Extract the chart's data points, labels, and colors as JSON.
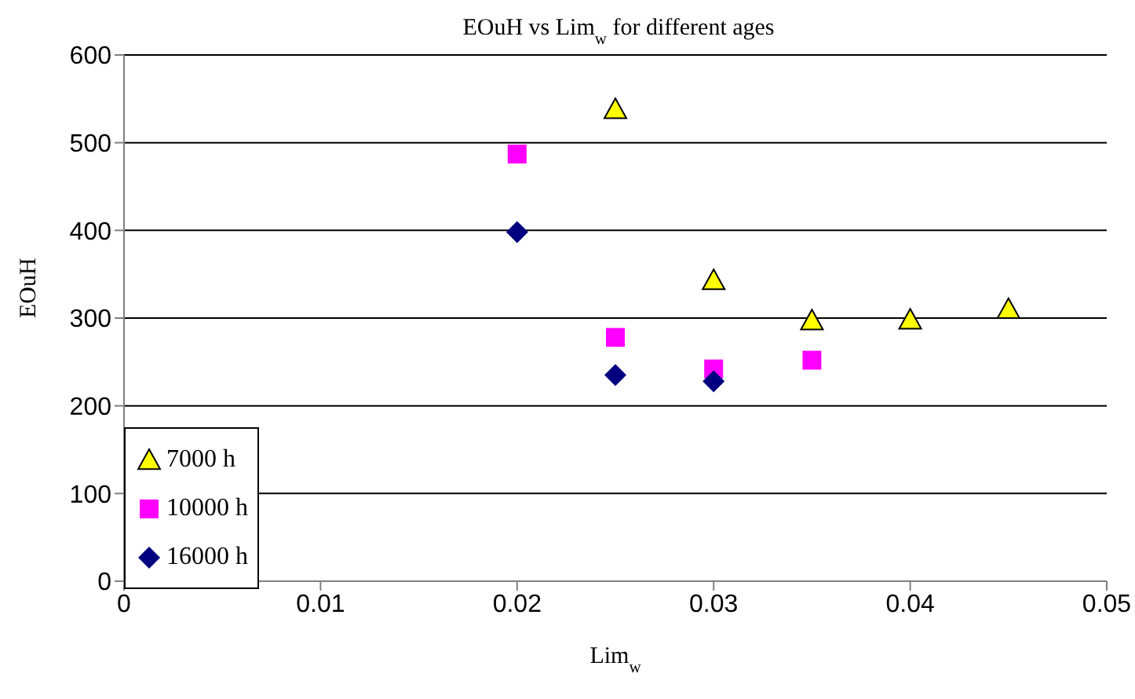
{
  "chart_data": {
    "type": "scatter",
    "title": "EOuH vs Lim$_{w}$ for different ages",
    "xlabel": "Lim$_{w}$",
    "ylabel": "EOuH",
    "xlim": [
      0,
      0.05
    ],
    "xticks": [
      0,
      0.01,
      0.02,
      0.03,
      0.04,
      0.05
    ],
    "ylim": [
      0,
      600
    ],
    "yticks": [
      0,
      100,
      200,
      300,
      400,
      500,
      600
    ],
    "grid": "y",
    "legend": "bottom left",
    "series": [
      {
        "name": "7000 h",
        "color": "#ffff00",
        "marker": "triangle",
        "x": [
          0.025,
          0.03,
          0.035,
          0.04,
          0.045
        ],
        "values": [
          538,
          343,
          297,
          298,
          310
        ]
      },
      {
        "name": "10000 h",
        "color": "#ff00ff",
        "marker": "square",
        "x": [
          0.02,
          0.025,
          0.03,
          0.035
        ],
        "values": [
          487,
          278,
          242,
          252
        ]
      },
      {
        "name": "16000 h",
        "color": "#000080",
        "marker": "diamond",
        "x": [
          0.02,
          0.025,
          0.03
        ],
        "values": [
          398,
          235,
          228
        ]
      }
    ]
  }
}
